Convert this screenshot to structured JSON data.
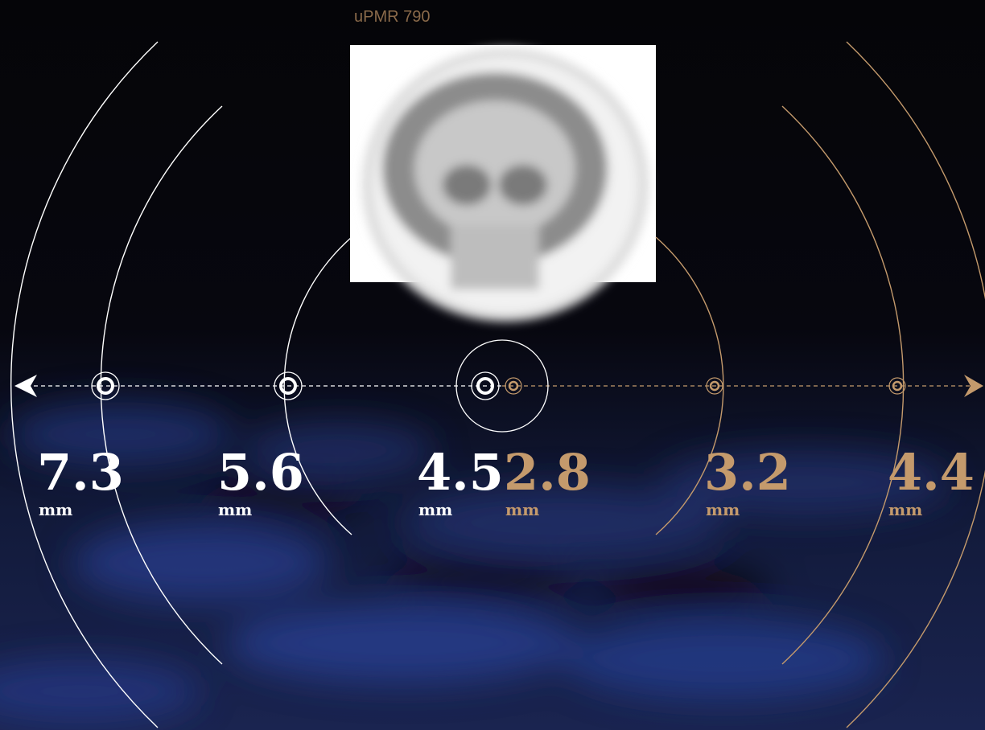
{
  "header": {
    "title": "uPMR 790"
  },
  "items": [
    {
      "value": "7.3",
      "unit": "mm"
    },
    {
      "value": "5.6",
      "unit": "mm"
    },
    {
      "value": "4.5",
      "unit": "mm"
    },
    {
      "value": "2.8",
      "unit": "mm"
    },
    {
      "value": "3.2",
      "unit": "mm"
    },
    {
      "value": "4.4",
      "unit": "mm"
    }
  ]
}
